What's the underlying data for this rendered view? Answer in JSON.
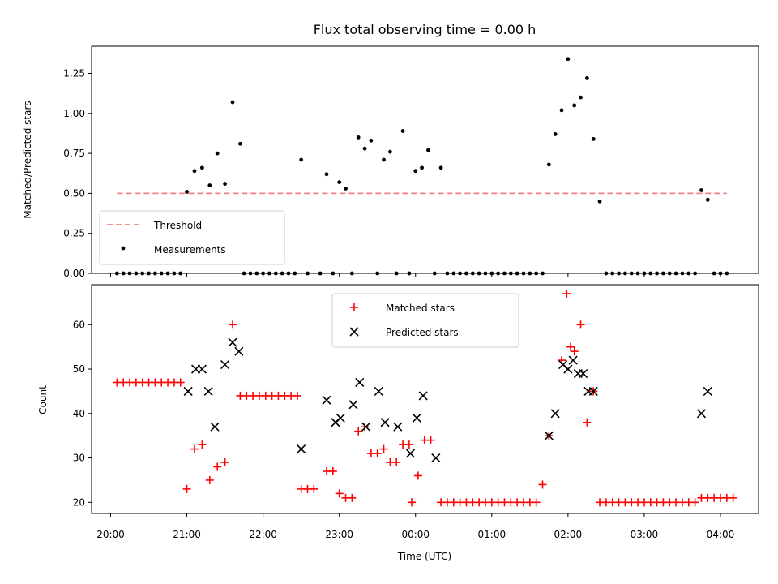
{
  "chart_data": [
    {
      "type": "scatter",
      "title": "Flux total observing time = 0.00 h",
      "xlabel": "",
      "ylabel": "Matched/Predicted stars",
      "xlim": [
        "19:45",
        "04:30"
      ],
      "ylim": [
        0,
        1.42
      ],
      "yticks": [
        0.0,
        0.25,
        0.5,
        0.75,
        1.0,
        1.25
      ],
      "ytick_labels": [
        "0.00",
        "0.25",
        "0.50",
        "0.75",
        "1.00",
        "1.25"
      ],
      "legend": {
        "position": "lower-left",
        "entries": [
          "Threshold",
          "Measurements"
        ]
      },
      "threshold": {
        "name": "Threshold",
        "y": 0.5,
        "x_range": [
          "20:05",
          "04:05"
        ],
        "color": "#f08080",
        "style": "dashed"
      },
      "series": [
        {
          "name": "Measurements",
          "color": "#000000",
          "marker": "dot",
          "points": [
            [
              "20:05",
              0
            ],
            [
              "20:10",
              0
            ],
            [
              "20:15",
              0
            ],
            [
              "20:20",
              0
            ],
            [
              "20:25",
              0
            ],
            [
              "20:30",
              0
            ],
            [
              "20:35",
              0
            ],
            [
              "20:40",
              0
            ],
            [
              "20:45",
              0
            ],
            [
              "20:50",
              0
            ],
            [
              "20:55",
              0
            ],
            [
              "21:00",
              0.51
            ],
            [
              "21:06",
              0.64
            ],
            [
              "21:12",
              0.66
            ],
            [
              "21:18",
              0.55
            ],
            [
              "21:24",
              0.75
            ],
            [
              "21:30",
              0.56
            ],
            [
              "21:36",
              1.07
            ],
            [
              "21:42",
              0.81
            ],
            [
              "21:45",
              0
            ],
            [
              "21:50",
              0
            ],
            [
              "21:55",
              0
            ],
            [
              "22:00",
              0
            ],
            [
              "22:05",
              0
            ],
            [
              "22:10",
              0
            ],
            [
              "22:15",
              0
            ],
            [
              "22:20",
              0
            ],
            [
              "22:25",
              0
            ],
            [
              "22:30",
              0.71
            ],
            [
              "22:35",
              0
            ],
            [
              "22:45",
              0
            ],
            [
              "22:50",
              0.62
            ],
            [
              "22:55",
              0
            ],
            [
              "23:00",
              0.57
            ],
            [
              "23:05",
              0.53
            ],
            [
              "23:10",
              0
            ],
            [
              "23:15",
              0.85
            ],
            [
              "23:20",
              0.78
            ],
            [
              "23:25",
              0.83
            ],
            [
              "23:30",
              0
            ],
            [
              "23:35",
              0.71
            ],
            [
              "23:40",
              0.76
            ],
            [
              "23:45",
              0
            ],
            [
              "23:50",
              0.89
            ],
            [
              "23:55",
              0
            ],
            [
              "00:00",
              0.64
            ],
            [
              "00:05",
              0.66
            ],
            [
              "00:10",
              0.77
            ],
            [
              "00:15",
              0
            ],
            [
              "00:20",
              0.66
            ],
            [
              "00:25",
              0
            ],
            [
              "00:30",
              0
            ],
            [
              "00:35",
              0
            ],
            [
              "00:40",
              0
            ],
            [
              "00:45",
              0
            ],
            [
              "00:50",
              0
            ],
            [
              "00:55",
              0
            ],
            [
              "01:00",
              0
            ],
            [
              "01:05",
              0
            ],
            [
              "01:10",
              0
            ],
            [
              "01:15",
              0
            ],
            [
              "01:20",
              0
            ],
            [
              "01:25",
              0
            ],
            [
              "01:30",
              0
            ],
            [
              "01:35",
              0
            ],
            [
              "01:40",
              0
            ],
            [
              "01:45",
              0.68
            ],
            [
              "01:50",
              0.87
            ],
            [
              "01:55",
              1.02
            ],
            [
              "02:00",
              1.34
            ],
            [
              "02:05",
              1.05
            ],
            [
              "02:10",
              1.1
            ],
            [
              "02:15",
              1.22
            ],
            [
              "02:20",
              0.84
            ],
            [
              "02:25",
              0.45
            ],
            [
              "02:30",
              0
            ],
            [
              "02:35",
              0
            ],
            [
              "02:40",
              0
            ],
            [
              "02:45",
              0
            ],
            [
              "02:50",
              0
            ],
            [
              "02:55",
              0
            ],
            [
              "03:00",
              0
            ],
            [
              "03:05",
              0
            ],
            [
              "03:10",
              0
            ],
            [
              "03:15",
              0
            ],
            [
              "03:20",
              0
            ],
            [
              "03:25",
              0
            ],
            [
              "03:30",
              0
            ],
            [
              "03:35",
              0
            ],
            [
              "03:40",
              0
            ],
            [
              "03:45",
              0.52
            ],
            [
              "03:50",
              0.46
            ],
            [
              "03:55",
              0
            ],
            [
              "04:00",
              0
            ],
            [
              "04:05",
              0
            ]
          ]
        }
      ]
    },
    {
      "type": "scatter",
      "title": "",
      "xlabel": "Time (UTC)",
      "ylabel": "Count",
      "xlim": [
        "19:45",
        "04:30"
      ],
      "ylim": [
        17.5,
        69
      ],
      "yticks": [
        20,
        30,
        40,
        50,
        60
      ],
      "ytick_labels": [
        "20",
        "30",
        "40",
        "50",
        "60"
      ],
      "xticks": [
        "20:00",
        "21:00",
        "22:00",
        "23:00",
        "00:00",
        "01:00",
        "02:00",
        "03:00",
        "04:00"
      ],
      "xtick_labels": [
        "20:00",
        "21:00",
        "22:00",
        "23:00",
        "00:00",
        "01:00",
        "02:00",
        "03:00",
        "04:00"
      ],
      "legend": {
        "position": "upper-center",
        "entries": [
          "Matched stars",
          "Predicted stars"
        ]
      },
      "series": [
        {
          "name": "Matched stars",
          "color": "#ff0000",
          "marker": "plus",
          "points": [
            [
              "20:05",
              47
            ],
            [
              "20:10",
              47
            ],
            [
              "20:15",
              47
            ],
            [
              "20:20",
              47
            ],
            [
              "20:25",
              47
            ],
            [
              "20:30",
              47
            ],
            [
              "20:35",
              47
            ],
            [
              "20:40",
              47
            ],
            [
              "20:45",
              47
            ],
            [
              "20:50",
              47
            ],
            [
              "20:55",
              47
            ],
            [
              "21:00",
              23
            ],
            [
              "21:06",
              32
            ],
            [
              "21:12",
              33
            ],
            [
              "21:18",
              25
            ],
            [
              "21:24",
              28
            ],
            [
              "21:30",
              29
            ],
            [
              "21:36",
              60
            ],
            [
              "21:42",
              44
            ],
            [
              "21:47",
              44
            ],
            [
              "21:52",
              44
            ],
            [
              "21:57",
              44
            ],
            [
              "22:02",
              44
            ],
            [
              "22:07",
              44
            ],
            [
              "22:12",
              44
            ],
            [
              "22:17",
              44
            ],
            [
              "22:22",
              44
            ],
            [
              "22:27",
              44
            ],
            [
              "22:30",
              23
            ],
            [
              "22:35",
              23
            ],
            [
              "22:40",
              23
            ],
            [
              "22:50",
              27
            ],
            [
              "22:55",
              27
            ],
            [
              "23:00",
              22
            ],
            [
              "23:05",
              21
            ],
            [
              "23:10",
              21
            ],
            [
              "23:15",
              36
            ],
            [
              "23:20",
              37
            ],
            [
              "23:25",
              31
            ],
            [
              "23:30",
              31
            ],
            [
              "23:35",
              32
            ],
            [
              "23:40",
              29
            ],
            [
              "23:45",
              29
            ],
            [
              "23:50",
              33
            ],
            [
              "23:55",
              33
            ],
            [
              "23:57",
              20
            ],
            [
              "00:02",
              26
            ],
            [
              "00:07",
              34
            ],
            [
              "00:12",
              34
            ],
            [
              "00:20",
              20
            ],
            [
              "00:25",
              20
            ],
            [
              "00:30",
              20
            ],
            [
              "00:35",
              20
            ],
            [
              "00:40",
              20
            ],
            [
              "00:45",
              20
            ],
            [
              "00:50",
              20
            ],
            [
              "00:55",
              20
            ],
            [
              "01:00",
              20
            ],
            [
              "01:05",
              20
            ],
            [
              "01:10",
              20
            ],
            [
              "01:15",
              20
            ],
            [
              "01:20",
              20
            ],
            [
              "01:25",
              20
            ],
            [
              "01:30",
              20
            ],
            [
              "01:35",
              20
            ],
            [
              "01:40",
              24
            ],
            [
              "01:45",
              35
            ],
            [
              "01:55",
              52
            ],
            [
              "01:59",
              67
            ],
            [
              "02:02",
              55
            ],
            [
              "02:05",
              54
            ],
            [
              "02:10",
              60
            ],
            [
              "02:15",
              38
            ],
            [
              "02:20",
              45
            ],
            [
              "02:25",
              20
            ],
            [
              "02:30",
              20
            ],
            [
              "02:35",
              20
            ],
            [
              "02:40",
              20
            ],
            [
              "02:45",
              20
            ],
            [
              "02:50",
              20
            ],
            [
              "02:55",
              20
            ],
            [
              "03:00",
              20
            ],
            [
              "03:05",
              20
            ],
            [
              "03:10",
              20
            ],
            [
              "03:15",
              20
            ],
            [
              "03:20",
              20
            ],
            [
              "03:25",
              20
            ],
            [
              "03:30",
              20
            ],
            [
              "03:35",
              20
            ],
            [
              "03:40",
              20
            ],
            [
              "03:45",
              21
            ],
            [
              "03:50",
              21
            ],
            [
              "03:55",
              21
            ],
            [
              "04:00",
              21
            ],
            [
              "04:05",
              21
            ],
            [
              "04:10",
              21
            ]
          ]
        },
        {
          "name": "Predicted stars",
          "color": "#000000",
          "marker": "x",
          "points": [
            [
              "21:01",
              45
            ],
            [
              "21:07",
              50
            ],
            [
              "21:12",
              50
            ],
            [
              "21:17",
              45
            ],
            [
              "21:22",
              37
            ],
            [
              "21:30",
              51
            ],
            [
              "21:36",
              56
            ],
            [
              "21:41",
              54
            ],
            [
              "22:30",
              32
            ],
            [
              "22:50",
              43
            ],
            [
              "22:57",
              38
            ],
            [
              "23:01",
              39
            ],
            [
              "23:11",
              42
            ],
            [
              "23:16",
              47
            ],
            [
              "23:21",
              37
            ],
            [
              "23:31",
              45
            ],
            [
              "23:36",
              38
            ],
            [
              "23:46",
              37
            ],
            [
              "23:56",
              31
            ],
            [
              "00:01",
              39
            ],
            [
              "00:06",
              44
            ],
            [
              "00:16",
              30
            ],
            [
              "01:45",
              35
            ],
            [
              "01:50",
              40
            ],
            [
              "01:56",
              51
            ],
            [
              "02:00",
              50
            ],
            [
              "02:04",
              52
            ],
            [
              "02:08",
              49
            ],
            [
              "02:12",
              49
            ],
            [
              "02:16",
              45
            ],
            [
              "02:20",
              45
            ],
            [
              "03:45",
              40
            ],
            [
              "03:50",
              45
            ]
          ]
        }
      ]
    }
  ]
}
